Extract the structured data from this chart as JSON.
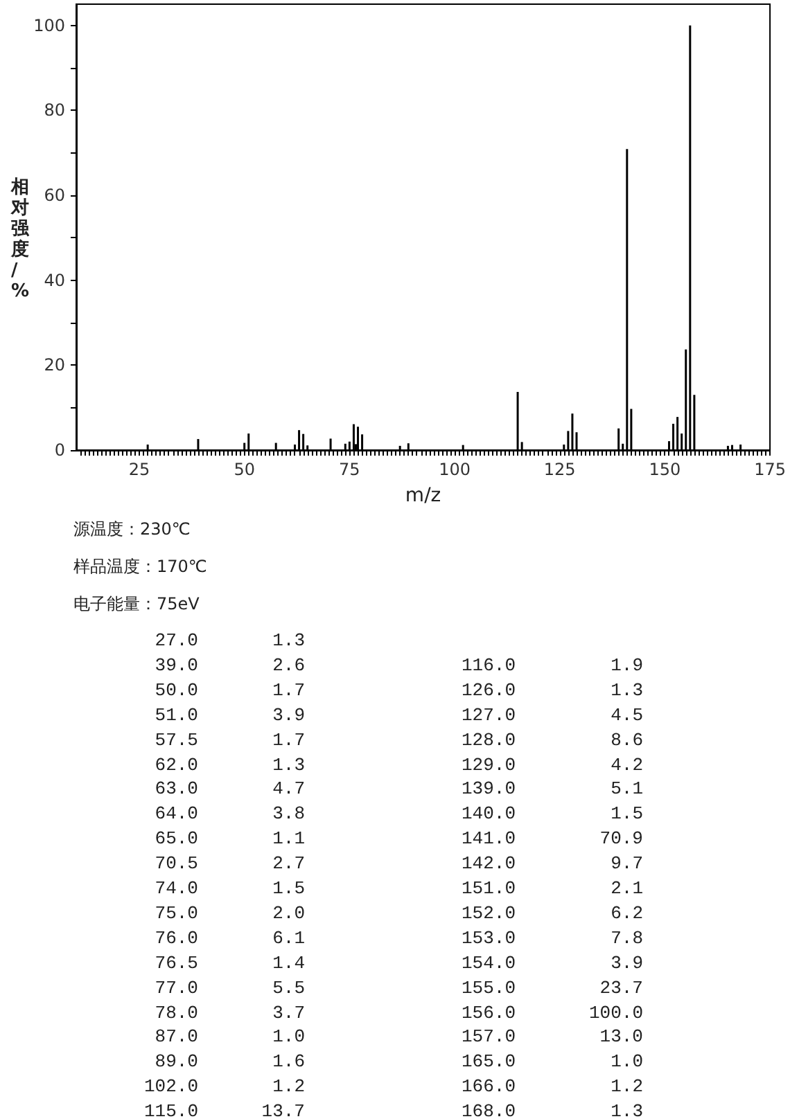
{
  "chart_data": [
    {
      "type": "bar",
      "xlabel": "m/z",
      "ylabel": "相对强度/%",
      "annotations": [
        "源温度：230℃",
        "样品温度：170℃",
        "电子能量：75eV"
      ],
      "x": [
        27.0,
        39.0,
        50.0,
        51.0,
        57.5,
        62.0,
        63.0,
        64.0,
        65.0,
        70.5,
        74.0,
        75.0,
        76.0,
        76.5,
        77.0,
        78.0,
        87.0,
        89.0,
        102.0,
        115.0,
        116.0,
        126.0,
        127.0,
        128.0,
        129.0,
        139.0,
        140.0,
        141.0,
        142.0,
        151.0,
        152.0,
        153.0,
        154.0,
        155.0,
        156.0,
        157.0,
        165.0,
        166.0,
        168.0
      ],
      "values": [
        1.3,
        2.6,
        1.7,
        3.9,
        1.7,
        1.3,
        4.7,
        3.8,
        1.1,
        2.7,
        1.5,
        2.0,
        6.1,
        1.4,
        5.5,
        3.7,
        1.0,
        1.6,
        1.2,
        13.7,
        1.9,
        1.3,
        4.5,
        8.6,
        4.2,
        5.1,
        1.5,
        70.9,
        9.7,
        2.1,
        6.2,
        7.8,
        3.9,
        23.7,
        100.0,
        13.0,
        1.0,
        1.2,
        1.3
      ],
      "color": "#000000",
      "xlim": [
        10,
        175
      ],
      "xticks": [
        25,
        50,
        75,
        100,
        125,
        150,
        175,
        {
          "value": 11,
          "label": null
        },
        {
          "value": 12,
          "label": null
        },
        {
          "value": 13,
          "label": null
        },
        {
          "value": 14,
          "label": null
        },
        {
          "value": 15,
          "label": null
        },
        {
          "value": 16,
          "label": null
        },
        {
          "value": 17,
          "label": null
        },
        {
          "value": 18,
          "label": null
        },
        {
          "value": 19,
          "label": null
        },
        {
          "value": 20,
          "label": null
        },
        {
          "value": 21,
          "label": null
        },
        {
          "value": 22,
          "label": null
        },
        {
          "value": 23,
          "label": null
        },
        {
          "value": 24,
          "label": null
        },
        {
          "value": 26,
          "label": null
        },
        {
          "value": 27,
          "label": null
        },
        {
          "value": 28,
          "label": null
        },
        {
          "value": 29,
          "label": null
        },
        {
          "value": 30,
          "label": null
        },
        {
          "value": 31,
          "label": null
        },
        {
          "value": 32,
          "label": null
        },
        {
          "value": 33,
          "label": null
        },
        {
          "value": 34,
          "label": null
        },
        {
          "value": 35,
          "label": null
        },
        {
          "value": 36,
          "label": null
        },
        {
          "value": 37,
          "label": null
        },
        {
          "value": 38,
          "label": null
        },
        {
          "value": 39,
          "label": null
        },
        {
          "value": 40,
          "label": null
        },
        {
          "value": 41,
          "label": null
        },
        {
          "value": 42,
          "label": null
        },
        {
          "value": 43,
          "label": null
        },
        {
          "value": 44,
          "label": null
        },
        {
          "value": 45,
          "label": null
        },
        {
          "value": 46,
          "label": null
        },
        {
          "value": 47,
          "label": null
        },
        {
          "value": 48,
          "label": null
        },
        {
          "value": 49,
          "label": null
        },
        {
          "value": 51,
          "label": null
        },
        {
          "value": 52,
          "label": null
        },
        {
          "value": 53,
          "label": null
        },
        {
          "value": 54,
          "label": null
        },
        {
          "value": 55,
          "label": null
        },
        {
          "value": 56,
          "label": null
        },
        {
          "value": 57,
          "label": null
        },
        {
          "value": 58,
          "label": null
        },
        {
          "value": 59,
          "label": null
        },
        {
          "value": 60,
          "label": null
        },
        {
          "value": 61,
          "label": null
        },
        {
          "value": 62,
          "label": null
        },
        {
          "value": 63,
          "label": null
        },
        {
          "value": 64,
          "label": null
        },
        {
          "value": 65,
          "label": null
        },
        {
          "value": 66,
          "label": null
        },
        {
          "value": 67,
          "label": null
        },
        {
          "value": 68,
          "label": null
        },
        {
          "value": 69,
          "label": null
        },
        {
          "value": 70,
          "label": null
        },
        {
          "value": 71,
          "label": null
        },
        {
          "value": 72,
          "label": null
        },
        {
          "value": 73,
          "label": null
        },
        {
          "value": 74,
          "label": null
        },
        {
          "value": 76,
          "label": null
        },
        {
          "value": 77,
          "label": null
        },
        {
          "value": 78,
          "label": null
        },
        {
          "value": 79,
          "label": null
        },
        {
          "value": 80,
          "label": null
        },
        {
          "value": 81,
          "label": null
        },
        {
          "value": 82,
          "label": null
        },
        {
          "value": 83,
          "label": null
        },
        {
          "value": 84,
          "label": null
        },
        {
          "value": 85,
          "label": null
        },
        {
          "value": 86,
          "label": null
        },
        {
          "value": 87,
          "label": null
        },
        {
          "value": 88,
          "label": null
        },
        {
          "value": 89,
          "label": null
        },
        {
          "value": 90,
          "label": null
        },
        {
          "value": 91,
          "label": null
        },
        {
          "value": 92,
          "label": null
        },
        {
          "value": 93,
          "label": null
        },
        {
          "value": 94,
          "label": null
        },
        {
          "value": 95,
          "label": null
        },
        {
          "value": 96,
          "label": null
        },
        {
          "value": 97,
          "label": null
        },
        {
          "value": 98,
          "label": null
        },
        {
          "value": 99,
          "label": null
        },
        {
          "value": 101,
          "label": null
        },
        {
          "value": 102,
          "label": null
        },
        {
          "value": 103,
          "label": null
        },
        {
          "value": 104,
          "label": null
        },
        {
          "value": 105,
          "label": null
        },
        {
          "value": 106,
          "label": null
        },
        {
          "value": 107,
          "label": null
        },
        {
          "value": 108,
          "label": null
        },
        {
          "value": 109,
          "label": null
        },
        {
          "value": 110,
          "label": null
        },
        {
          "value": 111,
          "label": null
        },
        {
          "value": 112,
          "label": null
        },
        {
          "value": 113,
          "label": null
        },
        {
          "value": 114,
          "label": null
        },
        {
          "value": 115,
          "label": null
        },
        {
          "value": 116,
          "label": null
        },
        {
          "value": 117,
          "label": null
        },
        {
          "value": 118,
          "label": null
        },
        {
          "value": 119,
          "label": null
        },
        {
          "value": 120,
          "label": null
        },
        {
          "value": 121,
          "label": null
        },
        {
          "value": 122,
          "label": null
        },
        {
          "value": 123,
          "label": null
        },
        {
          "value": 124,
          "label": null
        },
        {
          "value": 126,
          "label": null
        },
        {
          "value": 127,
          "label": null
        },
        {
          "value": 128,
          "label": null
        },
        {
          "value": 129,
          "label": null
        },
        {
          "value": 130,
          "label": null
        },
        {
          "value": 131,
          "label": null
        },
        {
          "value": 132,
          "label": null
        },
        {
          "value": 133,
          "label": null
        },
        {
          "value": 134,
          "label": null
        },
        {
          "value": 135,
          "label": null
        },
        {
          "value": 136,
          "label": null
        },
        {
          "value": 137,
          "label": null
        },
        {
          "value": 138,
          "label": null
        },
        {
          "value": 139,
          "label": null
        },
        {
          "value": 140,
          "label": null
        },
        {
          "value": 141,
          "label": null
        },
        {
          "value": 142,
          "label": null
        },
        {
          "value": 143,
          "label": null
        },
        {
          "value": 144,
          "label": null
        },
        {
          "value": 145,
          "label": null
        },
        {
          "value": 146,
          "label": null
        },
        {
          "value": 147,
          "label": null
        },
        {
          "value": 148,
          "label": null
        },
        {
          "value": 149,
          "label": null
        },
        {
          "value": 151,
          "label": null
        },
        {
          "value": 152,
          "label": null
        },
        {
          "value": 153,
          "label": null
        },
        {
          "value": 154,
          "label": null
        },
        {
          "value": 155,
          "label": null
        },
        {
          "value": 156,
          "label": null
        },
        {
          "value": 157,
          "label": null
        },
        {
          "value": 158,
          "label": null
        },
        {
          "value": 159,
          "label": null
        },
        {
          "value": 160,
          "label": null
        },
        {
          "value": 161,
          "label": null
        },
        {
          "value": 162,
          "label": null
        },
        {
          "value": 163,
          "label": null
        },
        {
          "value": 164,
          "label": null
        },
        {
          "value": 165,
          "label": null
        },
        {
          "value": 166,
          "label": null
        },
        {
          "value": 167,
          "label": null
        },
        {
          "value": 168,
          "label": null
        },
        {
          "value": 169,
          "label": null
        },
        {
          "value": 170,
          "label": null
        },
        {
          "value": 171,
          "label": null
        },
        {
          "value": 172,
          "label": null
        },
        {
          "value": 173,
          "label": null
        },
        {
          "value": 174,
          "label": null
        }
      ],
      "ylim": [
        0,
        105
      ],
      "yticks": [
        0,
        20,
        40,
        60,
        80,
        100,
        {
          "value": 10,
          "label": null
        },
        {
          "value": 30,
          "label": null
        },
        {
          "value": 50,
          "label": null
        },
        {
          "value": 70,
          "label": null
        },
        {
          "value": 90,
          "label": null
        }
      ]
    },
    {
      "type": "other",
      "categories": [
        "27.0",
        "39.0",
        "50.0",
        "51.0",
        "57.5",
        "62.0",
        "63.0",
        "64.0",
        "65.0",
        "70.5",
        "74.0",
        "75.0",
        "76.0",
        "76.5",
        "77.0",
        "78.0",
        "87.0",
        "89.0",
        "102.0",
        "115.0",
        "116.0",
        "126.0",
        "127.0",
        "128.0",
        "129.0",
        "139.0",
        "140.0",
        "141.0",
        "142.0",
        "151.0",
        "152.0",
        "153.0",
        "154.0",
        "155.0",
        "156.0",
        "157.0",
        "165.0",
        "166.0",
        "168.0"
      ],
      "value_labels": [
        "1.3",
        "2.6",
        "1.7",
        "3.9",
        "1.7",
        "1.3",
        "4.7",
        "3.8",
        "1.1",
        "2.7",
        "1.5",
        "2.0",
        "6.1",
        "1.4",
        "5.5",
        "3.7",
        "1.0",
        "1.6",
        "1.2",
        "13.7",
        "1.9",
        "1.3",
        "4.5",
        "8.6",
        "4.2",
        "5.1",
        "1.5",
        "70.9",
        "9.7",
        "2.1",
        "6.2",
        "7.8",
        "3.9",
        "23.7",
        "100.0",
        "13.0",
        "1.0",
        "1.2",
        "1.3"
      ]
    }
  ]
}
